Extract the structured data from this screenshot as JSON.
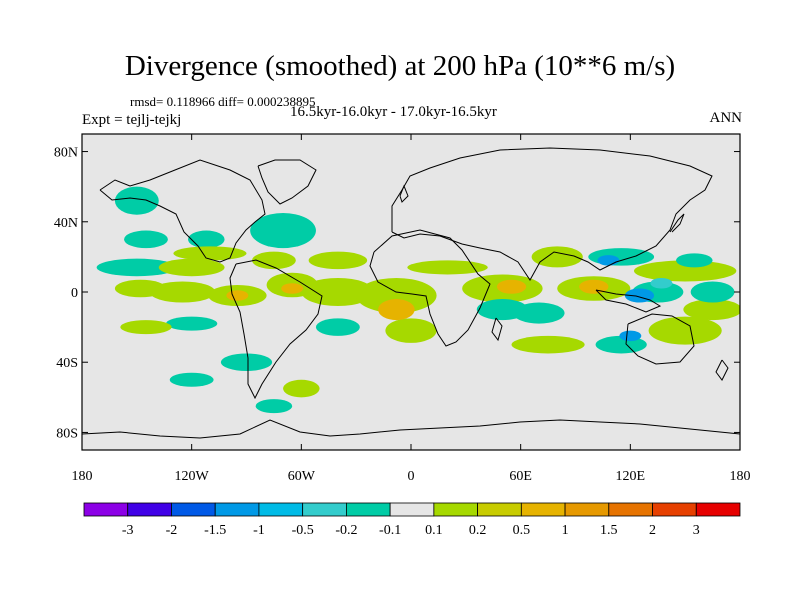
{
  "header": {
    "title": "Divergence (smoothed) at 200 hPa (10**6 m/s)",
    "stats": "rmsd= 0.118966 diff= 0.000238895",
    "experiment": "Expt = tejlj-tejkj",
    "period": "16.5kyr-16.0kyr - 17.0kyr-16.5kyr",
    "season": "ANN"
  },
  "map": {
    "projection": "cylindrical-equidistant",
    "background_color": "#e6e6e6",
    "lat_ticks": [
      {
        "value": 80,
        "label": "80N"
      },
      {
        "value": 40,
        "label": "40N"
      },
      {
        "value": 0,
        "label": "0"
      },
      {
        "value": -40,
        "label": "40S"
      },
      {
        "value": -80,
        "label": "80S"
      }
    ],
    "lon_ticks": [
      {
        "value": -180,
        "label": "180"
      },
      {
        "value": -120,
        "label": "120W"
      },
      {
        "value": -60,
        "label": "60W"
      },
      {
        "value": 0,
        "label": "0"
      },
      {
        "value": 60,
        "label": "60E"
      },
      {
        "value": 120,
        "label": "120E"
      },
      {
        "value": 180,
        "label": "180"
      }
    ],
    "anomalies": [
      {
        "lon": -150,
        "lat": 14,
        "rx": 22,
        "ry": 5,
        "color": "#00cca6"
      },
      {
        "lon": -120,
        "lat": 14,
        "rx": 18,
        "ry": 5,
        "color": "#a6d900"
      },
      {
        "lon": -148,
        "lat": 2,
        "rx": 14,
        "ry": 5,
        "color": "#a6d900"
      },
      {
        "lon": -125,
        "lat": 0,
        "rx": 18,
        "ry": 6,
        "color": "#a6d900"
      },
      {
        "lon": -95,
        "lat": -2,
        "rx": 16,
        "ry": 6,
        "color": "#a6d900"
      },
      {
        "lon": -65,
        "lat": 4,
        "rx": 14,
        "ry": 7,
        "color": "#a6d900"
      },
      {
        "lon": -40,
        "lat": 0,
        "rx": 20,
        "ry": 8,
        "color": "#a6d900"
      },
      {
        "lon": -8,
        "lat": -2,
        "rx": 22,
        "ry": 10,
        "color": "#a6d900"
      },
      {
        "lon": 50,
        "lat": 2,
        "rx": 22,
        "ry": 8,
        "color": "#a6d900"
      },
      {
        "lon": 100,
        "lat": 2,
        "rx": 20,
        "ry": 7,
        "color": "#a6d900"
      },
      {
        "lon": 150,
        "lat": 12,
        "rx": 28,
        "ry": 6,
        "color": "#a6d900"
      },
      {
        "lon": 165,
        "lat": -10,
        "rx": 16,
        "ry": 6,
        "color": "#a6d900"
      },
      {
        "lon": 150,
        "lat": -22,
        "rx": 20,
        "ry": 8,
        "color": "#a6d900"
      },
      {
        "lon": -150,
        "lat": 52,
        "rx": 12,
        "ry": 8,
        "color": "#00cca6"
      },
      {
        "lon": -145,
        "lat": 30,
        "rx": 12,
        "ry": 5,
        "color": "#00cca6"
      },
      {
        "lon": -112,
        "lat": 30,
        "rx": 10,
        "ry": 5,
        "color": "#00cca6"
      },
      {
        "lon": -70,
        "lat": 35,
        "rx": 18,
        "ry": 10,
        "color": "#00cca6"
      },
      {
        "lon": -110,
        "lat": 22,
        "rx": 20,
        "ry": 4,
        "color": "#a6d900"
      },
      {
        "lon": -75,
        "lat": 18,
        "rx": 12,
        "ry": 5,
        "color": "#a6d900"
      },
      {
        "lon": -40,
        "lat": 18,
        "rx": 16,
        "ry": 5,
        "color": "#a6d900"
      },
      {
        "lon": 20,
        "lat": 14,
        "rx": 22,
        "ry": 4,
        "color": "#a6d900"
      },
      {
        "lon": -40,
        "lat": -20,
        "rx": 12,
        "ry": 5,
        "color": "#00cca6"
      },
      {
        "lon": -120,
        "lat": -18,
        "rx": 14,
        "ry": 4,
        "color": "#00cca6"
      },
      {
        "lon": -145,
        "lat": -20,
        "rx": 14,
        "ry": 4,
        "color": "#a6d900"
      },
      {
        "lon": 0,
        "lat": -22,
        "rx": 14,
        "ry": 7,
        "color": "#a6d900"
      },
      {
        "lon": 50,
        "lat": -10,
        "rx": 14,
        "ry": 6,
        "color": "#00cca6"
      },
      {
        "lon": 70,
        "lat": -12,
        "rx": 14,
        "ry": 6,
        "color": "#00cca6"
      },
      {
        "lon": 80,
        "lat": 20,
        "rx": 14,
        "ry": 6,
        "color": "#a6d900"
      },
      {
        "lon": 115,
        "lat": 20,
        "rx": 18,
        "ry": 5,
        "color": "#00cca6"
      },
      {
        "lon": 135,
        "lat": 0,
        "rx": 14,
        "ry": 6,
        "color": "#00cca6"
      },
      {
        "lon": 165,
        "lat": 0,
        "rx": 12,
        "ry": 6,
        "color": "#00cca6"
      },
      {
        "lon": 155,
        "lat": 18,
        "rx": 10,
        "ry": 4,
        "color": "#00cca6"
      },
      {
        "lon": -60,
        "lat": -55,
        "rx": 10,
        "ry": 5,
        "color": "#a6d900"
      },
      {
        "lon": -75,
        "lat": -65,
        "rx": 10,
        "ry": 4,
        "color": "#00cca6"
      },
      {
        "lon": -90,
        "lat": -40,
        "rx": 14,
        "ry": 5,
        "color": "#00cca6"
      },
      {
        "lon": -120,
        "lat": -50,
        "rx": 12,
        "ry": 4,
        "color": "#00cca6"
      },
      {
        "lon": 75,
        "lat": -30,
        "rx": 20,
        "ry": 5,
        "color": "#a6d900"
      },
      {
        "lon": 115,
        "lat": -30,
        "rx": 14,
        "ry": 5,
        "color": "#00cca6"
      },
      {
        "lon": -8,
        "lat": -10,
        "rx": 10,
        "ry": 6,
        "color": "#e6b300"
      },
      {
        "lon": 55,
        "lat": 3,
        "rx": 8,
        "ry": 4,
        "color": "#e6b300"
      },
      {
        "lon": 100,
        "lat": 3,
        "rx": 8,
        "ry": 4,
        "color": "#e6b300"
      },
      {
        "lon": -95,
        "lat": -2,
        "rx": 6,
        "ry": 3,
        "color": "#e6b300"
      },
      {
        "lon": -65,
        "lat": 2,
        "rx": 6,
        "ry": 3,
        "color": "#e6b300"
      },
      {
        "lon": 125,
        "lat": -2,
        "rx": 8,
        "ry": 4,
        "color": "#0099e6"
      },
      {
        "lon": 108,
        "lat": 18,
        "rx": 6,
        "ry": 3,
        "color": "#0099e6"
      },
      {
        "lon": 120,
        "lat": -25,
        "rx": 6,
        "ry": 3,
        "color": "#0099e6"
      },
      {
        "lon": 137,
        "lat": 5,
        "rx": 6,
        "ry": 3,
        "color": "#33cccc"
      }
    ]
  },
  "legend": {
    "colors": [
      "#8c00e6",
      "#4000e6",
      "#0059e6",
      "#0099e6",
      "#00bbe6",
      "#33cccc",
      "#00cca6",
      "#e6e6e6",
      "#a6d900",
      "#c8cc00",
      "#e6b300",
      "#e69900",
      "#e67300",
      "#e64000",
      "#e60000"
    ],
    "labels": [
      "-3",
      "-2",
      "-1.5",
      "-1",
      "-0.5",
      "-0.2",
      "-0.1",
      "0.1",
      "0.2",
      "0.5",
      "1",
      "1.5",
      "2",
      "3"
    ]
  }
}
